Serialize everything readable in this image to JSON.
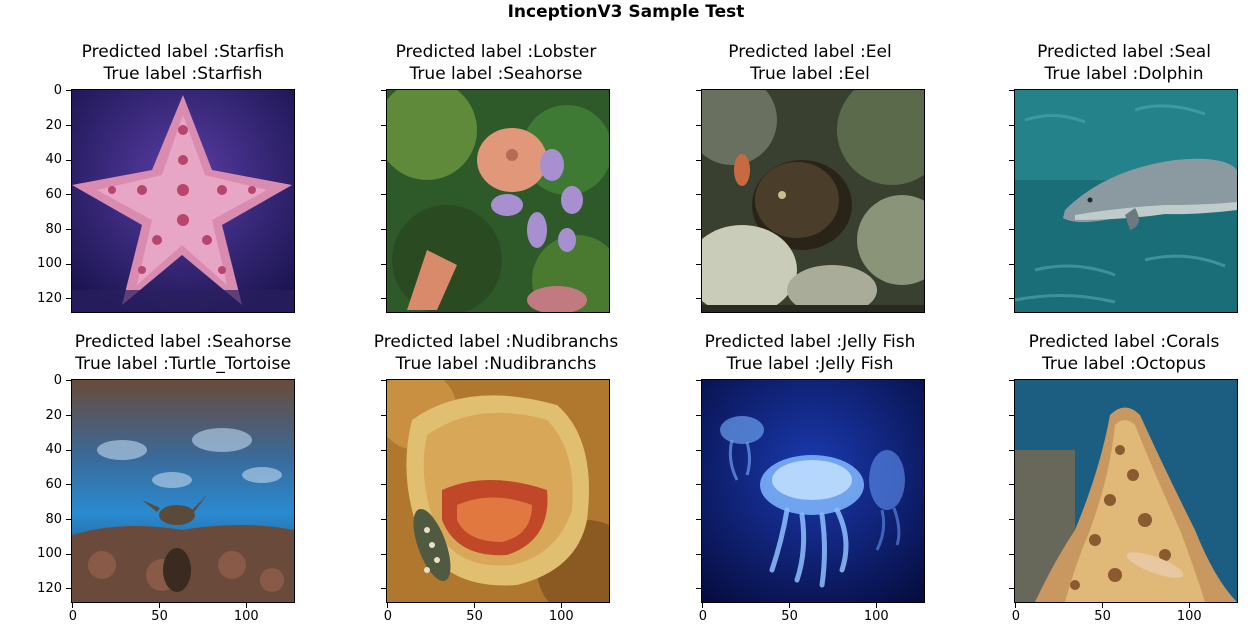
{
  "figure": {
    "title": "InceptionV3 Sample Test"
  },
  "axes": {
    "yticks": [
      "0",
      "20",
      "40",
      "60",
      "80",
      "100",
      "120"
    ],
    "xticks": [
      "0",
      "50",
      "100"
    ]
  },
  "panels": [
    {
      "predicted": "Predicted label :Starfish",
      "true_label": "True label :Starfish",
      "image": "starfish-photo"
    },
    {
      "predicted": "Predicted label :Lobster",
      "true_label": "True label :Seahorse",
      "image": "coral-reef-photo"
    },
    {
      "predicted": "Predicted label :Eel",
      "true_label": "True label :Eel",
      "image": "moray-eel-photo"
    },
    {
      "predicted": "Predicted label :Seal",
      "true_label": "True label :Dolphin",
      "image": "dolphin-photo"
    },
    {
      "predicted": "Predicted label :Seahorse",
      "true_label": "True label :Turtle_Tortoise",
      "image": "underwater-turtle-photo"
    },
    {
      "predicted": "Predicted label :Nudibranchs",
      "true_label": "True label :Nudibranchs",
      "image": "nudibranch-photo"
    },
    {
      "predicted": "Predicted label :Jelly Fish",
      "true_label": "True label :Jelly Fish",
      "image": "jellyfish-photo"
    },
    {
      "predicted": "Predicted label :Corals",
      "true_label": "True label :Octopus",
      "image": "octopus-photo"
    }
  ]
}
